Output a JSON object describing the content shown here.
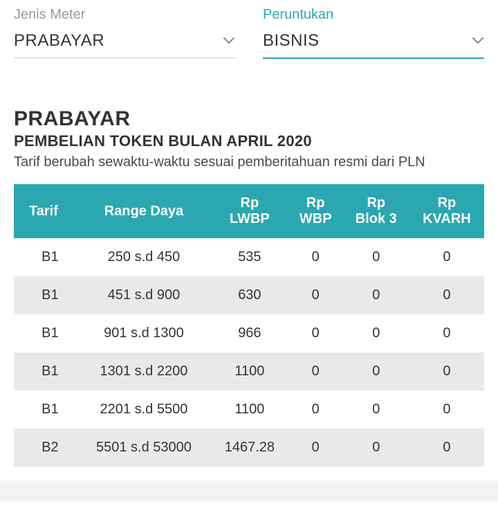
{
  "filters": {
    "meter": {
      "label": "Jenis Meter",
      "value": "PRABAYAR",
      "active": false
    },
    "usage": {
      "label": "Peruntukan",
      "value": "BISNIS",
      "active": true
    }
  },
  "header": {
    "title": "PRABAYAR",
    "subtitle": "PEMBELIAN TOKEN BULAN APRIL 2020",
    "note": "Tarif berubah sewaktu-waktu sesuai pemberitahuan resmi dari PLN"
  },
  "table": {
    "columns": [
      "Tarif",
      "Range Daya",
      "Rp LWBP",
      "Rp WBP",
      "Rp Blok 3",
      "Rp KVARH"
    ],
    "rows": [
      [
        "B1",
        "250 s.d 450",
        "535",
        "0",
        "0",
        "0"
      ],
      [
        "B1",
        "451 s.d 900",
        "630",
        "0",
        "0",
        "0"
      ],
      [
        "B1",
        "901 s.d 1300",
        "966",
        "0",
        "0",
        "0"
      ],
      [
        "B1",
        "1301 s.d 2200",
        "1100",
        "0",
        "0",
        "0"
      ],
      [
        "B1",
        "2201 s.d 5500",
        "1100",
        "0",
        "0",
        "0"
      ],
      [
        "B2",
        "5501 s.d 53000",
        "1467.28",
        "0",
        "0",
        "0"
      ]
    ],
    "header_bg": "#2aa7b0",
    "header_fg": "#ffffff",
    "row_even_bg": "#e9e9e9",
    "row_odd_bg": "#ffffff"
  },
  "colors": {
    "accent": "#2aa7b0",
    "label_muted": "#9a9a9a",
    "text": "#333333"
  }
}
